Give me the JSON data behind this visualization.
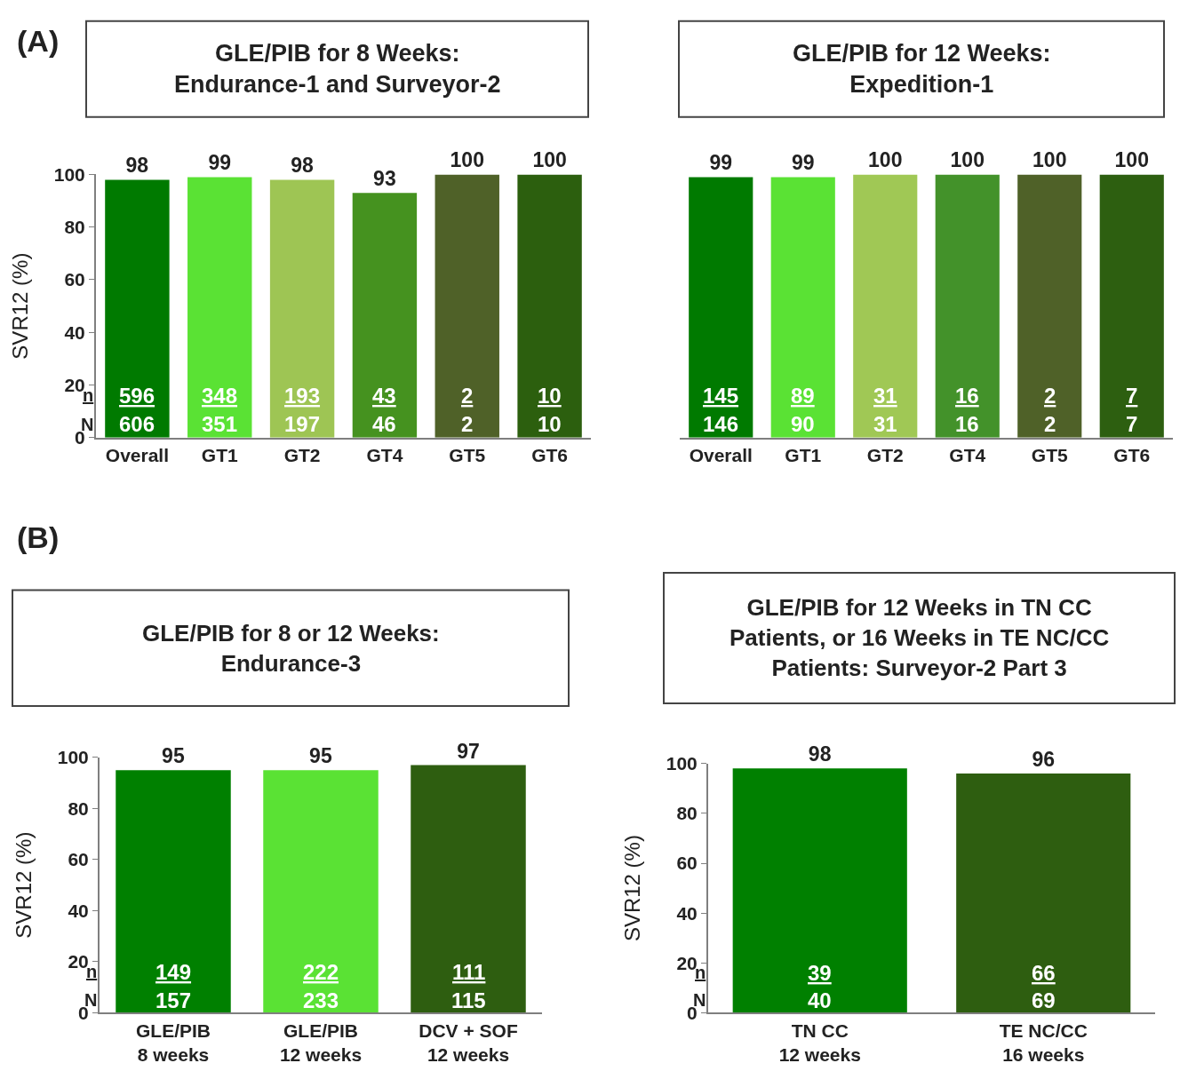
{
  "chart_data": [
    {
      "type": "bar",
      "title": "GLE/PIB for 8 Weeks:\nEndurance-1 and Surveyor-2",
      "ylabel": "SVR12 (%)",
      "categories": [
        "Overall",
        "GT1",
        "GT2",
        "GT4",
        "GT5",
        "GT6"
      ],
      "values": [
        98,
        99,
        98,
        93,
        100,
        100
      ],
      "colors": [
        "#007a00",
        "#5ae234",
        "#9ec554",
        "#45921f",
        "#4f6128",
        "#2c5f0e"
      ],
      "data_labels": true,
      "ylim": [
        0,
        100
      ],
      "yticks": [
        0,
        20,
        40,
        60,
        80,
        100
      ],
      "annotations": [
        "(A)",
        "n",
        "N",
        "596",
        "606",
        "348",
        "351",
        "193",
        "197",
        "43",
        "46",
        "2",
        "2",
        "10",
        "10"
      ]
    },
    {
      "type": "bar",
      "title": "GLE/PIB for 12 Weeks:\nExpedition-1",
      "categories": [
        "Overall",
        "GT1",
        "GT2",
        "GT4",
        "GT5",
        "GT6"
      ],
      "values": [
        99,
        99,
        100,
        100,
        100,
        100
      ],
      "colors": [
        "#007a00",
        "#5ae234",
        "#a0c855",
        "#43922a",
        "#4f6128",
        "#2d5f10"
      ],
      "data_labels": true,
      "ylim": [
        0,
        100
      ],
      "tick_labels": "x",
      "annotations": [
        "145",
        "146",
        "89",
        "90",
        "31",
        "31",
        "16",
        "16",
        "2",
        "2",
        "7",
        "7"
      ]
    },
    {
      "type": "bar",
      "title": "GLE/PIB for 8 or 12 Weeks:\nEndurance-3",
      "ylabel": "SVR12 (%)",
      "categories": [
        "GLE/PIB\n8 weeks",
        "GLE/PIB\n12 weeks",
        "DCV + SOF\n12 weeks"
      ],
      "values": [
        95,
        95,
        97
      ],
      "colors": [
        "#008000",
        "#5ae234",
        "#2e5e10"
      ],
      "data_labels": true,
      "ylim": [
        0,
        100
      ],
      "yticks": [
        0,
        20,
        40,
        60,
        80,
        100
      ],
      "annotations": [
        "(B)",
        "n",
        "N",
        "149",
        "157",
        "222",
        "233",
        "111",
        "115"
      ]
    },
    {
      "type": "bar",
      "title": "GLE/PIB for 12 Weeks in TN CC\nPatients, or 16 Weeks in TE NC/CC\nPatients: Surveyor-2 Part 3",
      "ylabel": "SVR12 (%)",
      "categories": [
        "TN CC\n12 weeks",
        "TE NC/CC\n16 weeks"
      ],
      "values": [
        98,
        96
      ],
      "colors": [
        "#008000",
        "#2e5e10"
      ],
      "data_labels": true,
      "ylim": [
        0,
        100
      ],
      "yticks": [
        0,
        20,
        40,
        60,
        80,
        100
      ],
      "annotations": [
        "n",
        "N",
        "39",
        "40",
        "66",
        "69"
      ]
    }
  ]
}
